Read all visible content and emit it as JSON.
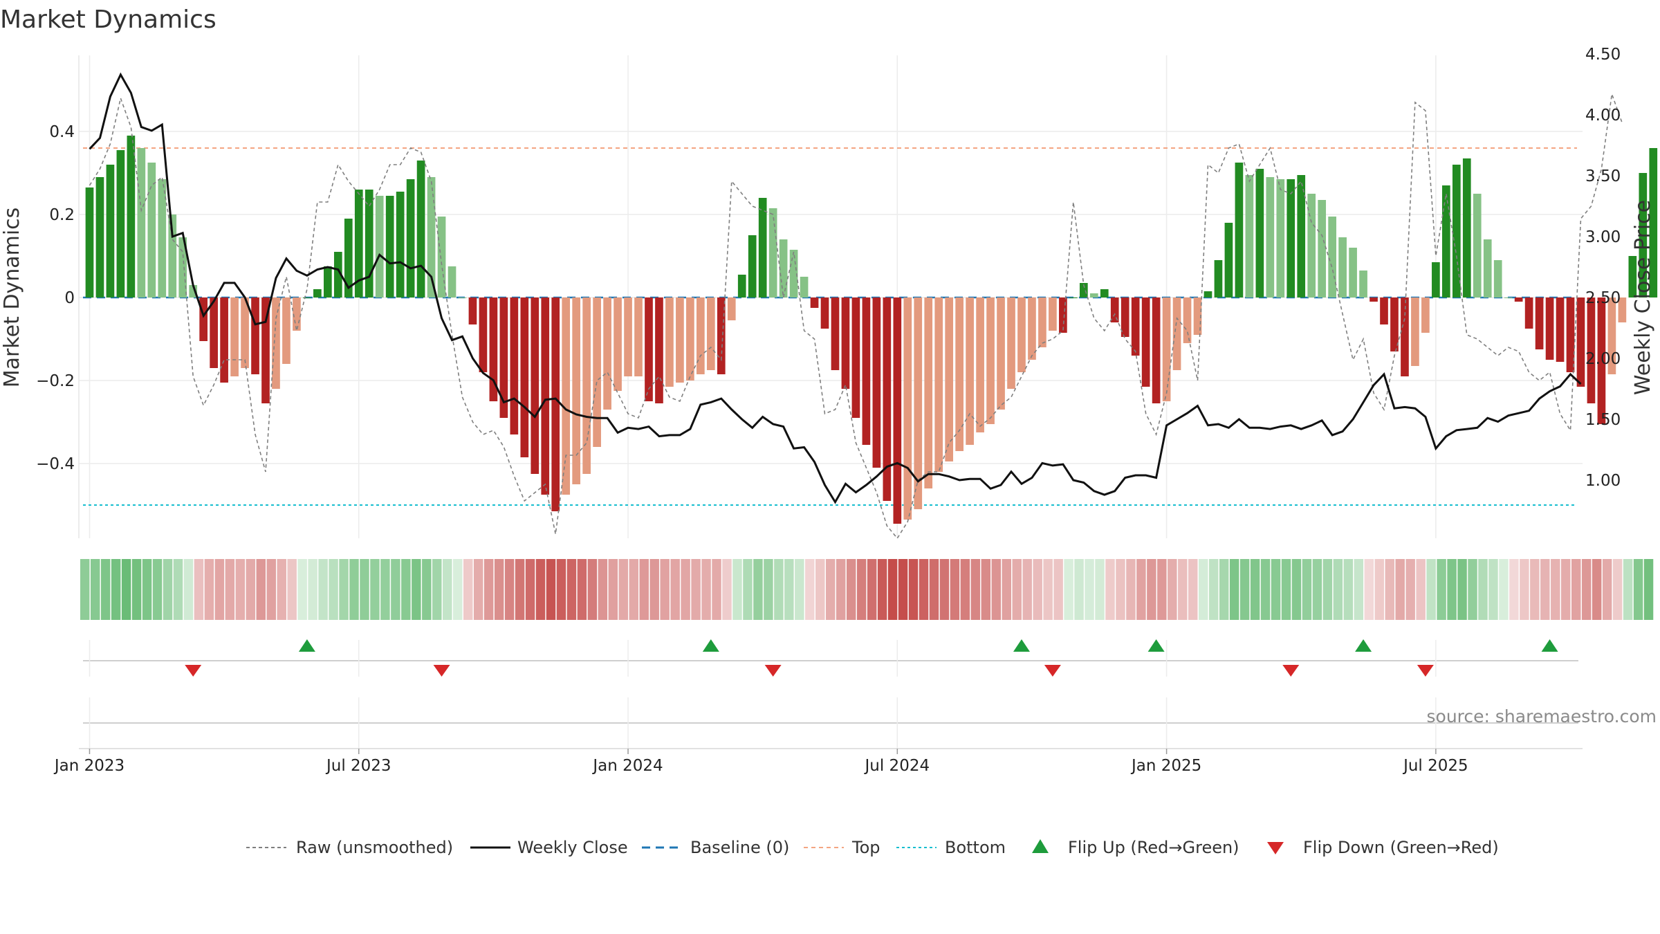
{
  "chart_data": {
    "type": "bar",
    "title": "Market Dynamics",
    "ylabel_left": "Market Dynamics",
    "ylabel_right": "Weekly Close Price",
    "left_ylim": [
      -0.58,
      0.6
    ],
    "right_ylim": [
      0.6,
      4.5
    ],
    "left_ticks": [
      {
        "value": 0.4,
        "label": "0.4"
      },
      {
        "value": 0.2,
        "label": "0.2"
      },
      {
        "value": 0,
        "label": "0"
      },
      {
        "value": -0.2,
        "label": "−0.2"
      },
      {
        "value": -0.4,
        "label": "−0.4"
      }
    ],
    "right_ticks": [
      {
        "value": 4.5,
        "label": "4.50"
      },
      {
        "value": 4.0,
        "label": "4.00"
      },
      {
        "value": 3.5,
        "label": "3.50"
      },
      {
        "value": 3.0,
        "label": "3.00"
      },
      {
        "value": 2.5,
        "label": "2.50"
      },
      {
        "value": 2.0,
        "label": "2.00"
      },
      {
        "value": 1.5,
        "label": "1.50"
      },
      {
        "value": 1.0,
        "label": "1.00"
      }
    ],
    "x_ticks": [
      {
        "week": 1,
        "label": "Jan 2023"
      },
      {
        "week": 27,
        "label": "Jul 2023"
      },
      {
        "week": 53,
        "label": "Jan 2024"
      },
      {
        "week": 79,
        "label": "Jul 2024"
      },
      {
        "week": 105,
        "label": "Jan 2025"
      },
      {
        "week": 131,
        "label": "Jul 2025"
      }
    ],
    "x_range": [
      0,
      144
    ],
    "top_level": 0.36,
    "bottom_level": -0.5,
    "baseline": 0,
    "dynamics": [
      0.265,
      0.29,
      0.32,
      0.355,
      0.39,
      0.36,
      0.325,
      0.285,
      0.2,
      0.145,
      0.03,
      -0.105,
      -0.17,
      -0.205,
      -0.19,
      -0.17,
      -0.185,
      -0.255,
      -0.22,
      -0.16,
      -0.08,
      0.0,
      0.02,
      0.075,
      0.11,
      0.19,
      0.26,
      0.26,
      0.245,
      0.245,
      0.255,
      0.285,
      0.33,
      0.29,
      0.195,
      0.075,
      0.0,
      -0.065,
      -0.18,
      -0.25,
      -0.29,
      -0.33,
      -0.385,
      -0.425,
      -0.475,
      -0.515,
      -0.475,
      -0.45,
      -0.425,
      -0.36,
      -0.27,
      -0.225,
      -0.19,
      -0.19,
      -0.25,
      -0.255,
      -0.215,
      -0.205,
      -0.2,
      -0.185,
      -0.175,
      -0.185,
      -0.055,
      0.055,
      0.15,
      0.24,
      0.215,
      0.14,
      0.115,
      0.05,
      -0.025,
      -0.075,
      -0.175,
      -0.22,
      -0.29,
      -0.355,
      -0.41,
      -0.49,
      -0.545,
      -0.535,
      -0.51,
      -0.46,
      -0.42,
      -0.395,
      -0.37,
      -0.355,
      -0.325,
      -0.305,
      -0.27,
      -0.22,
      -0.18,
      -0.15,
      -0.12,
      -0.08,
      -0.085,
      0.0,
      0.035,
      0.01,
      0.02,
      -0.06,
      -0.095,
      -0.14,
      -0.215,
      -0.255,
      -0.25,
      -0.175,
      -0.11,
      -0.09,
      0.015,
      0.09,
      0.18,
      0.325,
      0.295,
      0.31,
      0.29,
      0.285,
      0.285,
      0.295,
      0.25,
      0.235,
      0.195,
      0.145,
      0.12,
      0.065,
      -0.01,
      -0.065,
      -0.13,
      -0.19,
      -0.165,
      -0.085,
      0.085,
      0.27,
      0.32,
      0.335,
      0.25,
      0.14,
      0.09,
      0.0,
      -0.01,
      -0.075,
      -0.125,
      -0.15,
      -0.155,
      -0.18,
      -0.215,
      -0.255,
      -0.305,
      -0.185,
      -0.06,
      0.1,
      0.3,
      0.36
    ],
    "raw": [
      0.27,
      0.31,
      0.37,
      0.48,
      0.41,
      0.21,
      0.27,
      0.29,
      0.14,
      0.11,
      -0.19,
      -0.26,
      -0.21,
      -0.15,
      -0.15,
      -0.15,
      -0.33,
      -0.42,
      -0.05,
      0.05,
      -0.08,
      0.02,
      0.23,
      0.23,
      0.32,
      0.28,
      0.25,
      0.22,
      0.26,
      0.32,
      0.32,
      0.36,
      0.35,
      0.28,
      0.08,
      -0.09,
      -0.24,
      -0.3,
      -0.33,
      -0.32,
      -0.36,
      -0.43,
      -0.49,
      -0.47,
      -0.45,
      -0.57,
      -0.38,
      -0.38,
      -0.35,
      -0.2,
      -0.18,
      -0.23,
      -0.28,
      -0.29,
      -0.22,
      -0.19,
      -0.24,
      -0.25,
      -0.19,
      -0.14,
      -0.12,
      -0.15,
      0.28,
      0.25,
      0.22,
      0.21,
      0.2,
      0.0,
      0.11,
      -0.08,
      -0.1,
      -0.28,
      -0.27,
      -0.21,
      -0.35,
      -0.41,
      -0.47,
      -0.55,
      -0.58,
      -0.54,
      -0.44,
      -0.42,
      -0.42,
      -0.35,
      -0.32,
      -0.28,
      -0.31,
      -0.29,
      -0.26,
      -0.24,
      -0.19,
      -0.14,
      -0.11,
      -0.1,
      -0.08,
      0.23,
      0.03,
      -0.05,
      -0.08,
      -0.04,
      -0.1,
      -0.13,
      -0.28,
      -0.33,
      -0.23,
      -0.05,
      -0.08,
      -0.2,
      0.32,
      0.3,
      0.36,
      0.37,
      0.28,
      0.32,
      0.36,
      0.26,
      0.25,
      0.28,
      0.18,
      0.15,
      0.07,
      -0.04,
      -0.15,
      -0.1,
      -0.23,
      -0.27,
      -0.14,
      -0.05,
      0.47,
      0.45,
      0.1,
      0.25,
      0.1,
      -0.09,
      -0.1,
      -0.12,
      -0.14,
      -0.12,
      -0.13,
      -0.18,
      -0.2,
      -0.18,
      -0.28,
      -0.32,
      0.19,
      0.22,
      0.31,
      0.49,
      0.42
    ],
    "weekly_close": [
      3.72,
      3.81,
      4.15,
      4.33,
      4.18,
      3.9,
      3.87,
      3.92,
      3.0,
      3.03,
      2.6,
      2.35,
      2.47,
      2.62,
      2.62,
      2.5,
      2.28,
      2.3,
      2.66,
      2.82,
      2.72,
      2.68,
      2.73,
      2.75,
      2.73,
      2.58,
      2.64,
      2.67,
      2.85,
      2.78,
      2.79,
      2.74,
      2.76,
      2.67,
      2.33,
      2.15,
      2.18,
      2.0,
      1.88,
      1.82,
      1.64,
      1.67,
      1.6,
      1.52,
      1.66,
      1.67,
      1.58,
      1.54,
      1.52,
      1.51,
      1.51,
      1.39,
      1.43,
      1.42,
      1.44,
      1.36,
      1.37,
      1.37,
      1.42,
      1.62,
      1.64,
      1.67,
      1.58,
      1.5,
      1.43,
      1.52,
      1.46,
      1.44,
      1.26,
      1.27,
      1.15,
      0.96,
      0.82,
      0.97,
      0.9,
      0.96,
      1.03,
      1.11,
      1.14,
      1.1,
      0.99,
      1.05,
      1.05,
      1.03,
      1.0,
      1.01,
      1.01,
      0.93,
      0.96,
      1.07,
      0.97,
      1.02,
      1.14,
      1.12,
      1.13,
      1.0,
      0.98,
      0.91,
      0.88,
      0.91,
      1.02,
      1.04,
      1.04,
      1.02,
      1.45,
      1.5,
      1.55,
      1.61,
      1.45,
      1.46,
      1.43,
      1.5,
      1.43,
      1.43,
      1.42,
      1.44,
      1.45,
      1.42,
      1.45,
      1.49,
      1.37,
      1.4,
      1.5,
      1.64,
      1.78,
      1.87,
      1.59,
      1.6,
      1.59,
      1.52,
      1.26,
      1.36,
      1.41,
      1.42,
      1.43,
      1.51,
      1.48,
      1.53,
      1.55,
      1.57,
      1.67,
      1.73,
      1.77,
      1.87,
      1.79
    ],
    "color_scheme": {
      "strong_up": "#228b22",
      "weak_up": "#86c286",
      "strong_down": "#b22222",
      "weak_down": "#e39a7e",
      "price_line": "#111111",
      "raw_line": "#7f7f7f",
      "baseline": "#1f77b4",
      "top": "#f4a582",
      "bottom": "#17becf",
      "flip_up": "#1e9c3c",
      "flip_down": "#d62728"
    },
    "flips_up_weeks": [
      22,
      61,
      91,
      104,
      124,
      142
    ],
    "flips_down_weeks": [
      11,
      35,
      67,
      94,
      117,
      130
    ],
    "legend": [
      {
        "key": "raw",
        "label": "Raw (unsmoothed)"
      },
      {
        "key": "close",
        "label": "Weekly Close"
      },
      {
        "key": "baseline",
        "label": "Baseline (0)"
      },
      {
        "key": "top",
        "label": "Top"
      },
      {
        "key": "bottom",
        "label": "Bottom"
      },
      {
        "key": "flip_up",
        "label": "Flip Up (Red→Green)"
      },
      {
        "key": "flip_down",
        "label": "Flip Down (Green→Red)"
      }
    ],
    "source_note": "source: sharemaestro.com"
  }
}
